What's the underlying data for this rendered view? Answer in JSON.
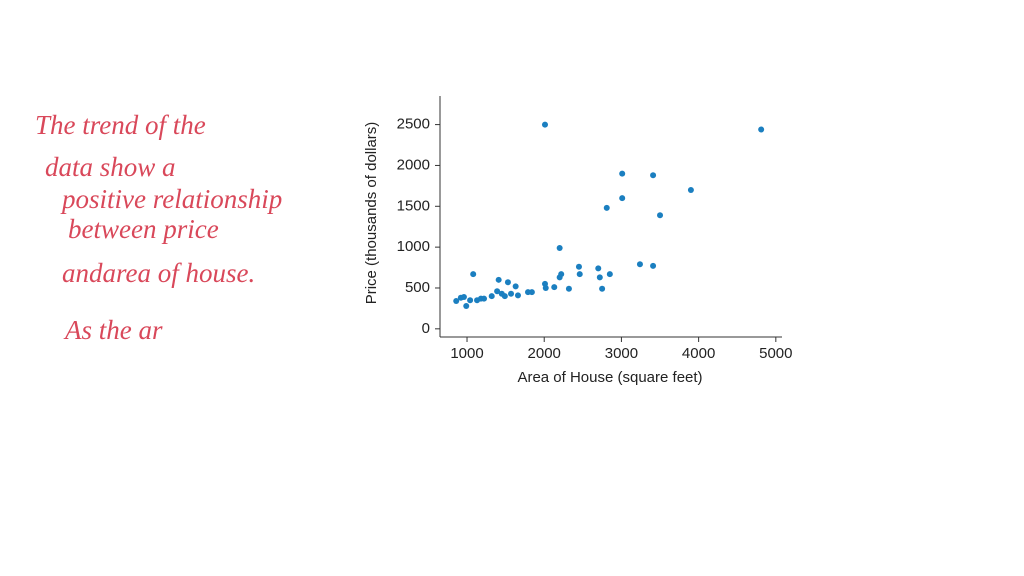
{
  "chart_data": {
    "type": "scatter",
    "x_label": "Area of House (square feet)",
    "y_label": "Price (thousands of dollars)",
    "color": "#1b7fc0",
    "annotation_color": "#d9485a",
    "annotations": [
      "The trend of the",
      "data show a",
      "positive relationship",
      "between price",
      "andarea of house.",
      "As the ar"
    ],
    "xlim": [
      650,
      5080
    ],
    "ylim": [
      -100,
      2850
    ],
    "xticks": [
      1000,
      2000,
      3000,
      4000,
      5000
    ],
    "yticks": [
      0,
      500,
      1000,
      1500,
      2000,
      2500
    ],
    "x": [
      860,
      920,
      960,
      990,
      1040,
      1080,
      1130,
      1180,
      1220,
      1320,
      1390,
      1410,
      1450,
      1490,
      1530,
      1570,
      1630,
      1660,
      1790,
      1840,
      2010,
      2020,
      2010,
      2130,
      2200,
      2200,
      2220,
      2320,
      2450,
      2460,
      2700,
      2720,
      2750,
      2810,
      2850,
      3010,
      3010,
      3240,
      3410,
      3410,
      3500,
      3900,
      4810
    ],
    "values": [
      340,
      380,
      390,
      280,
      350,
      670,
      350,
      370,
      370,
      400,
      460,
      600,
      430,
      400,
      570,
      430,
      520,
      410,
      450,
      450,
      550,
      500,
      2500,
      510,
      990,
      630,
      670,
      490,
      760,
      670,
      740,
      630,
      490,
      1480,
      670,
      1900,
      1600,
      790,
      1880,
      770,
      1390,
      1700,
      2440
    ]
  }
}
